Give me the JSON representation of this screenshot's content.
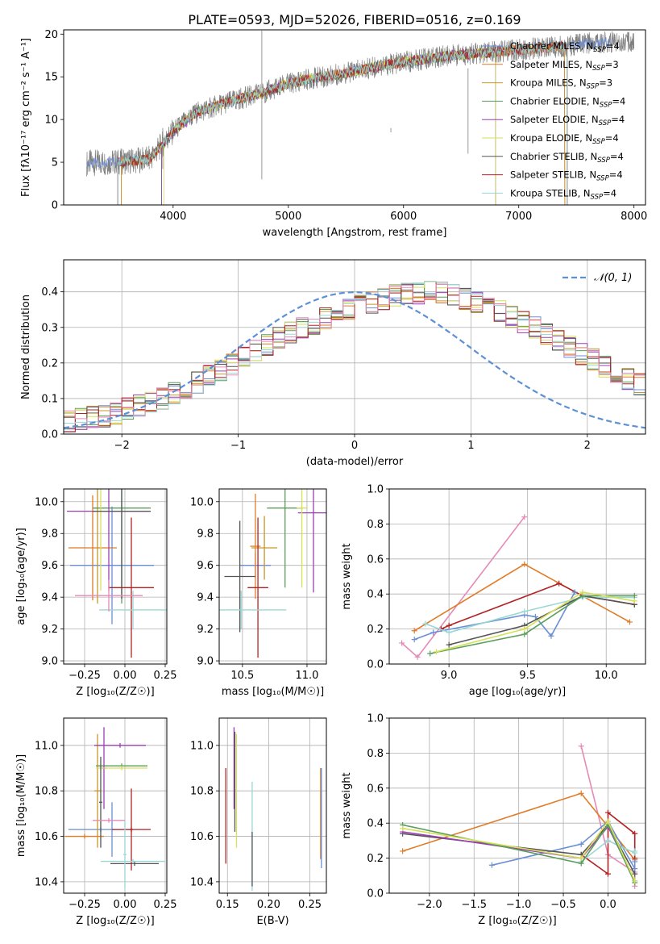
{
  "colors": {
    "series": [
      "#6a8fd6",
      "#e07b27",
      "#c7972a",
      "#5a9e5a",
      "#9b3fb5",
      "#d6e05a",
      "#555555",
      "#b22222",
      "#9ad7d5"
    ],
    "pink": "#e58ab8",
    "observed": "#808080",
    "grid": "#b0b0b0"
  },
  "chart_data": [
    {
      "id": "spectrum",
      "type": "line",
      "title": "PLATE=0593, MJD=52026, FIBERID=0516, z=0.169",
      "xlabel": "wavelength [Angstrom, rest frame]",
      "ylabel": "Flux [fλ10⁻¹⁷ erg cm⁻² s⁻¹ A⁻¹]",
      "xlim": [
        3050,
        8100
      ],
      "ylim": [
        0,
        20.5
      ],
      "xticks": [
        "4000",
        "5000",
        "6000",
        "7000",
        "8000"
      ],
      "xtick_values": [
        4000,
        5000,
        6000,
        7000,
        8000
      ],
      "yticks": [
        "0",
        "5",
        "10",
        "15",
        "20"
      ],
      "ytick_values": [
        0,
        5,
        10,
        15,
        20
      ],
      "grid": false,
      "legend_position": "top-right",
      "continuum": {
        "x": [
          3250,
          3400,
          3600,
          3800,
          4000,
          4200,
          4400,
          4600,
          4800,
          5000,
          5200,
          5400,
          5600,
          5800,
          6000,
          6200,
          6400,
          6600,
          6800,
          7000,
          7200,
          7400,
          7600,
          7800
        ],
        "y": [
          4.9,
          5.0,
          5.1,
          5.4,
          8.6,
          10.8,
          11.7,
          12.5,
          13.2,
          14.2,
          14.8,
          15.2,
          15.7,
          16.3,
          16.7,
          17.1,
          17.5,
          17.7,
          17.9,
          18.2,
          18.4,
          18.6,
          18.9,
          19.1
        ]
      },
      "series": [
        {
          "name": "Chabrier MILES, N",
          "subscript": "SSP",
          "suffix": "=4",
          "range": [
            3250,
            7800
          ]
        },
        {
          "name": "Salpeter MILES, N",
          "subscript": "SSP",
          "suffix": "=3",
          "range": [
            3550,
            7400
          ]
        },
        {
          "name": "Kroupa MILES, N",
          "subscript": "SSP",
          "suffix": "=3",
          "range": [
            3550,
            7400
          ]
        },
        {
          "name": "Chabrier ELODIE, N",
          "subscript": "SSP",
          "suffix": "=4",
          "range": [
            3900,
            6800
          ]
        },
        {
          "name": "Salpeter ELODIE, N",
          "subscript": "SSP",
          "suffix": "=4",
          "range": [
            3900,
            6800
          ]
        },
        {
          "name": "Kroupa ELODIE, N",
          "subscript": "SSP",
          "suffix": "=4",
          "range": [
            3920,
            6800
          ]
        },
        {
          "name": "Chabrier STELIB, N",
          "subscript": "SSP",
          "suffix": "=4",
          "range": [
            3520,
            7420
          ]
        },
        {
          "name": "Salpeter STELIB, N",
          "subscript": "SSP",
          "suffix": "=4",
          "range": [
            3520,
            7420
          ]
        },
        {
          "name": "Kroupa STELIB, N",
          "subscript": "SSP",
          "suffix": "=4",
          "range": [
            3520,
            7420
          ]
        }
      ],
      "observed_range": [
        3250,
        8000
      ]
    },
    {
      "id": "residuals",
      "type": "line",
      "xlabel": "(data-model)/error",
      "ylabel": "Normed distribution",
      "xlim": [
        -2.5,
        2.5
      ],
      "ylim": [
        0,
        0.49
      ],
      "xticks": [
        "−2",
        "−1",
        "0",
        "1",
        "2"
      ],
      "xtick_values": [
        -2,
        -1,
        0,
        1,
        2
      ],
      "yticks": [
        "0.0",
        "0.1",
        "0.2",
        "0.3",
        "0.4"
      ],
      "ytick_values": [
        0,
        0.1,
        0.2,
        0.3,
        0.4
      ],
      "grid": true,
      "legend_position": "top-right",
      "legend": "𝒩(0, 1)",
      "normal": {
        "mean": 0,
        "sigma": 1
      },
      "bin_edges_start": -2.5,
      "bin_width": 0.1,
      "base_histogram": [
        0.035,
        0.042,
        0.048,
        0.05,
        0.058,
        0.072,
        0.08,
        0.09,
        0.1,
        0.115,
        0.13,
        0.145,
        0.165,
        0.18,
        0.195,
        0.215,
        0.235,
        0.25,
        0.27,
        0.285,
        0.3,
        0.31,
        0.325,
        0.335,
        0.35,
        0.36,
        0.37,
        0.38,
        0.39,
        0.395,
        0.395,
        0.4,
        0.398,
        0.392,
        0.38,
        0.37,
        0.36,
        0.345,
        0.33,
        0.315,
        0.3,
        0.28,
        0.265,
        0.245,
        0.225,
        0.21,
        0.19,
        0.17,
        0.155,
        0.14,
        0.125,
        0.11,
        0.098,
        0.085,
        0.075,
        0.065,
        0.056,
        0.048,
        0.042,
        0.036
      ]
    },
    {
      "id": "age-vs-Z",
      "type": "scatter",
      "xlabel": "Z [log₁₀(Z/Z☉)]",
      "ylabel": "age  [log₁₀(age/yr)]",
      "xlim": [
        -0.38,
        0.26
      ],
      "ylim": [
        8.98,
        10.08
      ],
      "xticks": [
        "−0.25",
        "0.00",
        "0.25"
      ],
      "xtick_values": [
        -0.25,
        0,
        0.25
      ],
      "yticks": [
        "9.0",
        "9.2",
        "9.4",
        "9.6",
        "9.8",
        "10.0"
      ],
      "ytick_values": [
        9.0,
        9.2,
        9.4,
        9.6,
        9.8,
        10.0
      ],
      "grid": true,
      "errorbars": [
        {
          "series": 0,
          "x": -0.08,
          "xerr": 0.26,
          "y": 9.6,
          "yerr": 0.37
        },
        {
          "series": 1,
          "x": -0.2,
          "xerr": 0.15,
          "y": 9.71,
          "yerr": 0.33
        },
        {
          "series": 2,
          "x": -0.17,
          "xerr": 0.02,
          "y": 9.96,
          "yerr": 0.6
        },
        {
          "series": 3,
          "x": -0.02,
          "xerr": 0.18,
          "y": 9.96,
          "yerr": 0.6
        },
        {
          "series": 4,
          "x": -0.1,
          "xerr": 0.26,
          "y": 9.94,
          "yerr": 0.5
        },
        {
          "series": 5,
          "x": -0.15,
          "xerr": 0.04,
          "y": 9.94,
          "yerr": 0.5
        },
        {
          "series": 6,
          "x": -0.02,
          "xerr": 0.18,
          "y": 9.94,
          "yerr": 0.55
        },
        {
          "series": 7,
          "x": 0.04,
          "xerr": 0.14,
          "y": 9.46,
          "yerr": 0.44
        },
        {
          "series": 8,
          "x": 0.05,
          "xerr": 0.21,
          "y": 9.32,
          "yerr": 0.12
        },
        {
          "series": "pink",
          "x": -0.1,
          "xerr": 0.21,
          "y": 9.41,
          "yerr": 0.1
        }
      ]
    },
    {
      "id": "age-vs-mass",
      "type": "scatter",
      "xlabel": "mass [log₁₀(M/M☉)]",
      "ylabel": "",
      "xlim": [
        10.32,
        11.15
      ],
      "ylim": [
        8.98,
        10.08
      ],
      "xticks": [
        "10.5",
        "11.0"
      ],
      "xtick_values": [
        10.5,
        11.0
      ],
      "yticks": [
        "9.0",
        "9.2",
        "9.4",
        "9.6",
        "9.8",
        "10.0"
      ],
      "ytick_values": [
        9.0,
        9.2,
        9.4,
        9.6,
        9.8,
        10.0
      ],
      "grid": true,
      "errorbars": [
        {
          "series": 0,
          "x": 10.6,
          "xerr": 0.12,
          "y": 9.6,
          "yerr": 0.08
        },
        {
          "series": 1,
          "x": 10.6,
          "xerr": 0.04,
          "y": 9.72,
          "yerr": 0.33
        },
        {
          "series": 2,
          "x": 10.67,
          "xerr": 0.1,
          "y": 9.71,
          "yerr": 0.2
        },
        {
          "series": 3,
          "x": 10.83,
          "xerr": 0.14,
          "y": 9.96,
          "yerr": 0.5
        },
        {
          "series": 4,
          "x": 11.05,
          "xerr": 0.12,
          "y": 9.93,
          "yerr": 0.5
        },
        {
          "series": 5,
          "x": 10.96,
          "xerr": 0.04,
          "y": 9.96,
          "yerr": 0.5
        },
        {
          "series": 6,
          "x": 10.48,
          "xerr": 0.12,
          "y": 9.53,
          "yerr": 0.35
        },
        {
          "series": 7,
          "x": 10.62,
          "xerr": 0.08,
          "y": 9.46,
          "yerr": 0.44
        },
        {
          "series": 8,
          "x": 10.49,
          "xerr": 0.35,
          "y": 9.32,
          "yerr": 0.12
        }
      ]
    },
    {
      "id": "massweight-vs-age",
      "type": "line",
      "xlabel": "age  [log₁₀(age/yr)]",
      "ylabel": "mass weight",
      "xlim": [
        8.62,
        10.25
      ],
      "ylim": [
        0,
        1.0
      ],
      "xticks": [
        "9.0",
        "9.5",
        "10.0"
      ],
      "xtick_values": [
        9.0,
        9.5,
        10.0
      ],
      "yticks": [
        "0.0",
        "0.2",
        "0.4",
        "0.6",
        "0.8",
        "1.0"
      ],
      "ytick_values": [
        0,
        0.2,
        0.4,
        0.6,
        0.8,
        1.0
      ],
      "grid": true,
      "series": [
        {
          "color": "pink",
          "x": [
            8.7,
            8.8,
            9.48
          ],
          "y": [
            0.12,
            0.04,
            0.84
          ]
        },
        {
          "color": 1,
          "x": [
            8.78,
            9.48,
            10.15
          ],
          "y": [
            0.19,
            0.57,
            0.24
          ]
        },
        {
          "color": 7,
          "x": [
            8.95,
            9.0,
            9.7,
            9.85,
            10.18
          ],
          "y": [
            0.2,
            0.22,
            0.46,
            0.39,
            0.34
          ]
        },
        {
          "color": 0,
          "x": [
            8.78,
            8.9,
            9.48,
            9.55,
            9.65,
            9.8
          ],
          "y": [
            0.14,
            0.18,
            0.28,
            0.27,
            0.16,
            0.41
          ]
        },
        {
          "color": 8,
          "x": [
            8.85,
            9.0,
            9.48,
            9.85,
            10.18
          ],
          "y": [
            0.23,
            0.18,
            0.3,
            0.38,
            0.38
          ]
        },
        {
          "color": 6,
          "x": [
            9.0,
            9.48,
            9.85,
            10.18
          ],
          "y": [
            0.11,
            0.22,
            0.39,
            0.34
          ]
        },
        {
          "color": 3,
          "x": [
            8.88,
            9.48,
            9.85,
            10.18
          ],
          "y": [
            0.06,
            0.17,
            0.39,
            0.39
          ]
        },
        {
          "color": 5,
          "x": [
            8.92,
            9.48,
            9.85,
            10.18
          ],
          "y": [
            0.07,
            0.2,
            0.41,
            0.36
          ]
        }
      ]
    },
    {
      "id": "mass-vs-Z",
      "type": "scatter",
      "xlabel": "Z [log₁₀(Z/Z☉)]",
      "ylabel": "mass [log₁₀(M/M☉)]",
      "xlim": [
        -0.38,
        0.26
      ],
      "ylim": [
        10.35,
        11.12
      ],
      "xticks": [
        "−0.25",
        "0.00",
        "0.25"
      ],
      "xtick_values": [
        -0.25,
        0,
        0.25
      ],
      "yticks": [
        "10.4",
        "10.6",
        "10.8",
        "11.0"
      ],
      "ytick_values": [
        10.4,
        10.6,
        10.8,
        11.0
      ],
      "grid": true,
      "errorbars": [
        {
          "series": 0,
          "x": -0.15,
          "xerr": 0.2,
          "y": 10.63,
          "yerr": 0.01
        },
        {
          "series": 0,
          "x": -0.08,
          "xerr": 0.01,
          "y": 10.63,
          "yerr": 0.12
        },
        {
          "series": 1,
          "x": -0.25,
          "xerr": 0.12,
          "y": 10.6,
          "yerr": 0.01
        },
        {
          "series": 2,
          "x": -0.17,
          "xerr": 0.02,
          "y": 10.8,
          "yerr": 0.25
        },
        {
          "series": 3,
          "x": -0.02,
          "xerr": 0.16,
          "y": 10.91,
          "yerr": 0.01
        },
        {
          "series": 4,
          "x": -0.03,
          "xerr": 0.16,
          "y": 11.0,
          "yerr": 0.01
        },
        {
          "series": 4,
          "x": -0.13,
          "xerr": 0.01,
          "y": 10.9,
          "yerr": 0.18
        },
        {
          "series": 5,
          "x": -0.02,
          "xerr": 0.16,
          "y": 10.9,
          "yerr": 0.01
        },
        {
          "series": 6,
          "x": -0.15,
          "xerr": 0.01,
          "y": 10.75,
          "yerr": 0.2
        },
        {
          "series": 6,
          "x": 0.06,
          "xerr": 0.15,
          "y": 10.48,
          "yerr": 0.01
        },
        {
          "series": 7,
          "x": 0.04,
          "xerr": 0.12,
          "y": 10.63,
          "yerr": 0.01
        },
        {
          "series": 7,
          "x": 0.04,
          "xerr": 0.01,
          "y": 10.63,
          "yerr": 0.18
        },
        {
          "series": 8,
          "x": 0.05,
          "xerr": 0.2,
          "y": 10.49,
          "yerr": 0.01
        },
        {
          "series": 8,
          "x": 0.0,
          "xerr": 0.01,
          "y": 10.52,
          "yerr": 0.15
        },
        {
          "series": "pink",
          "x": -0.1,
          "xerr": 0.1,
          "y": 10.67,
          "yerr": 0.01
        }
      ]
    },
    {
      "id": "mass-vs-EBV",
      "type": "scatter",
      "xlabel": "E(B-V)",
      "ylabel": "",
      "xlim": [
        0.14,
        0.27
      ],
      "ylim": [
        10.35,
        11.12
      ],
      "xticks": [
        "0.15",
        "0.20",
        "0.25"
      ],
      "xtick_values": [
        0.15,
        0.2,
        0.25
      ],
      "yticks": [
        "10.4",
        "10.6",
        "10.8",
        "11.0"
      ],
      "ytick_values": [
        10.4,
        10.6,
        10.8,
        11.0
      ],
      "grid": true,
      "errorbars": [
        {
          "series": 7,
          "x": 0.148,
          "xerr": 0.0,
          "y": 10.69,
          "yerr": 0.21
        },
        {
          "series": 4,
          "x": 0.158,
          "xerr": 0.0,
          "y": 10.9,
          "yerr": 0.18
        },
        {
          "series": 6,
          "x": 0.159,
          "xerr": 0.0,
          "y": 10.84,
          "yerr": 0.22
        },
        {
          "series": 5,
          "x": 0.161,
          "xerr": 0.0,
          "y": 10.8,
          "yerr": 0.25
        },
        {
          "series": 8,
          "x": 0.18,
          "xerr": 0.0,
          "y": 10.6,
          "yerr": 0.24
        },
        {
          "series": 6,
          "x": 0.18,
          "xerr": 0.0,
          "y": 10.5,
          "yerr": 0.12
        },
        {
          "series": 1,
          "x": 0.263,
          "xerr": 0.0,
          "y": 10.7,
          "yerr": 0.2
        },
        {
          "series": 0,
          "x": 0.264,
          "xerr": 0.0,
          "y": 10.68,
          "yerr": 0.22
        }
      ]
    },
    {
      "id": "massweight-vs-Z",
      "type": "line",
      "xlabel": "Z [log₁₀(Z/Z☉)]",
      "ylabel": "mass weight",
      "xlim": [
        -2.45,
        0.42
      ],
      "ylim": [
        0,
        1.0
      ],
      "xticks": [
        "−2.0",
        "−1.5",
        "−1.0",
        "−0.5",
        "0.0"
      ],
      "xtick_values": [
        -2.0,
        -1.5,
        -1.0,
        -0.5,
        0.0
      ],
      "yticks": [
        "0.0",
        "0.2",
        "0.4",
        "0.6",
        "0.8",
        "1.0"
      ],
      "ytick_values": [
        0,
        0.2,
        0.4,
        0.6,
        0.8,
        1.0
      ],
      "grid": true,
      "series": [
        {
          "color": "pink",
          "x": [
            -0.3,
            0.0,
            0.3,
            0.3
          ],
          "y": [
            0.84,
            0.22,
            0.12,
            0.04
          ]
        },
        {
          "color": 1,
          "x": [
            -2.3,
            -0.3,
            0.0,
            0.3
          ],
          "y": [
            0.24,
            0.57,
            0.38,
            0.19
          ]
        },
        {
          "color": 7,
          "x": [
            -0.3,
            0.0,
            0.0,
            0.3,
            0.3
          ],
          "y": [
            0.22,
            0.11,
            0.46,
            0.34,
            0.2
          ]
        },
        {
          "color": 0,
          "x": [
            -1.3,
            -0.3,
            0.0,
            0.3,
            0.3
          ],
          "y": [
            0.16,
            0.28,
            0.41,
            0.14,
            0.18
          ]
        },
        {
          "color": 8,
          "x": [
            -0.3,
            0.0,
            0.3,
            0.3
          ],
          "y": [
            0.18,
            0.3,
            0.23,
            0.24
          ]
        },
        {
          "color": 6,
          "x": [
            -2.3,
            -0.3,
            0.0,
            0.3
          ],
          "y": [
            0.34,
            0.22,
            0.39,
            0.11
          ]
        },
        {
          "color": 4,
          "x": [
            -2.3,
            -0.3,
            0.0,
            0.3
          ],
          "y": [
            0.35,
            0.2,
            0.38,
            0.07
          ]
        },
        {
          "color": 3,
          "x": [
            -2.3,
            -0.3,
            0.0,
            0.3
          ],
          "y": [
            0.39,
            0.17,
            0.39,
            0.06
          ]
        },
        {
          "color": 5,
          "x": [
            -2.3,
            -0.3,
            0.0,
            0.3
          ],
          "y": [
            0.37,
            0.2,
            0.41,
            0.07
          ]
        }
      ]
    }
  ]
}
